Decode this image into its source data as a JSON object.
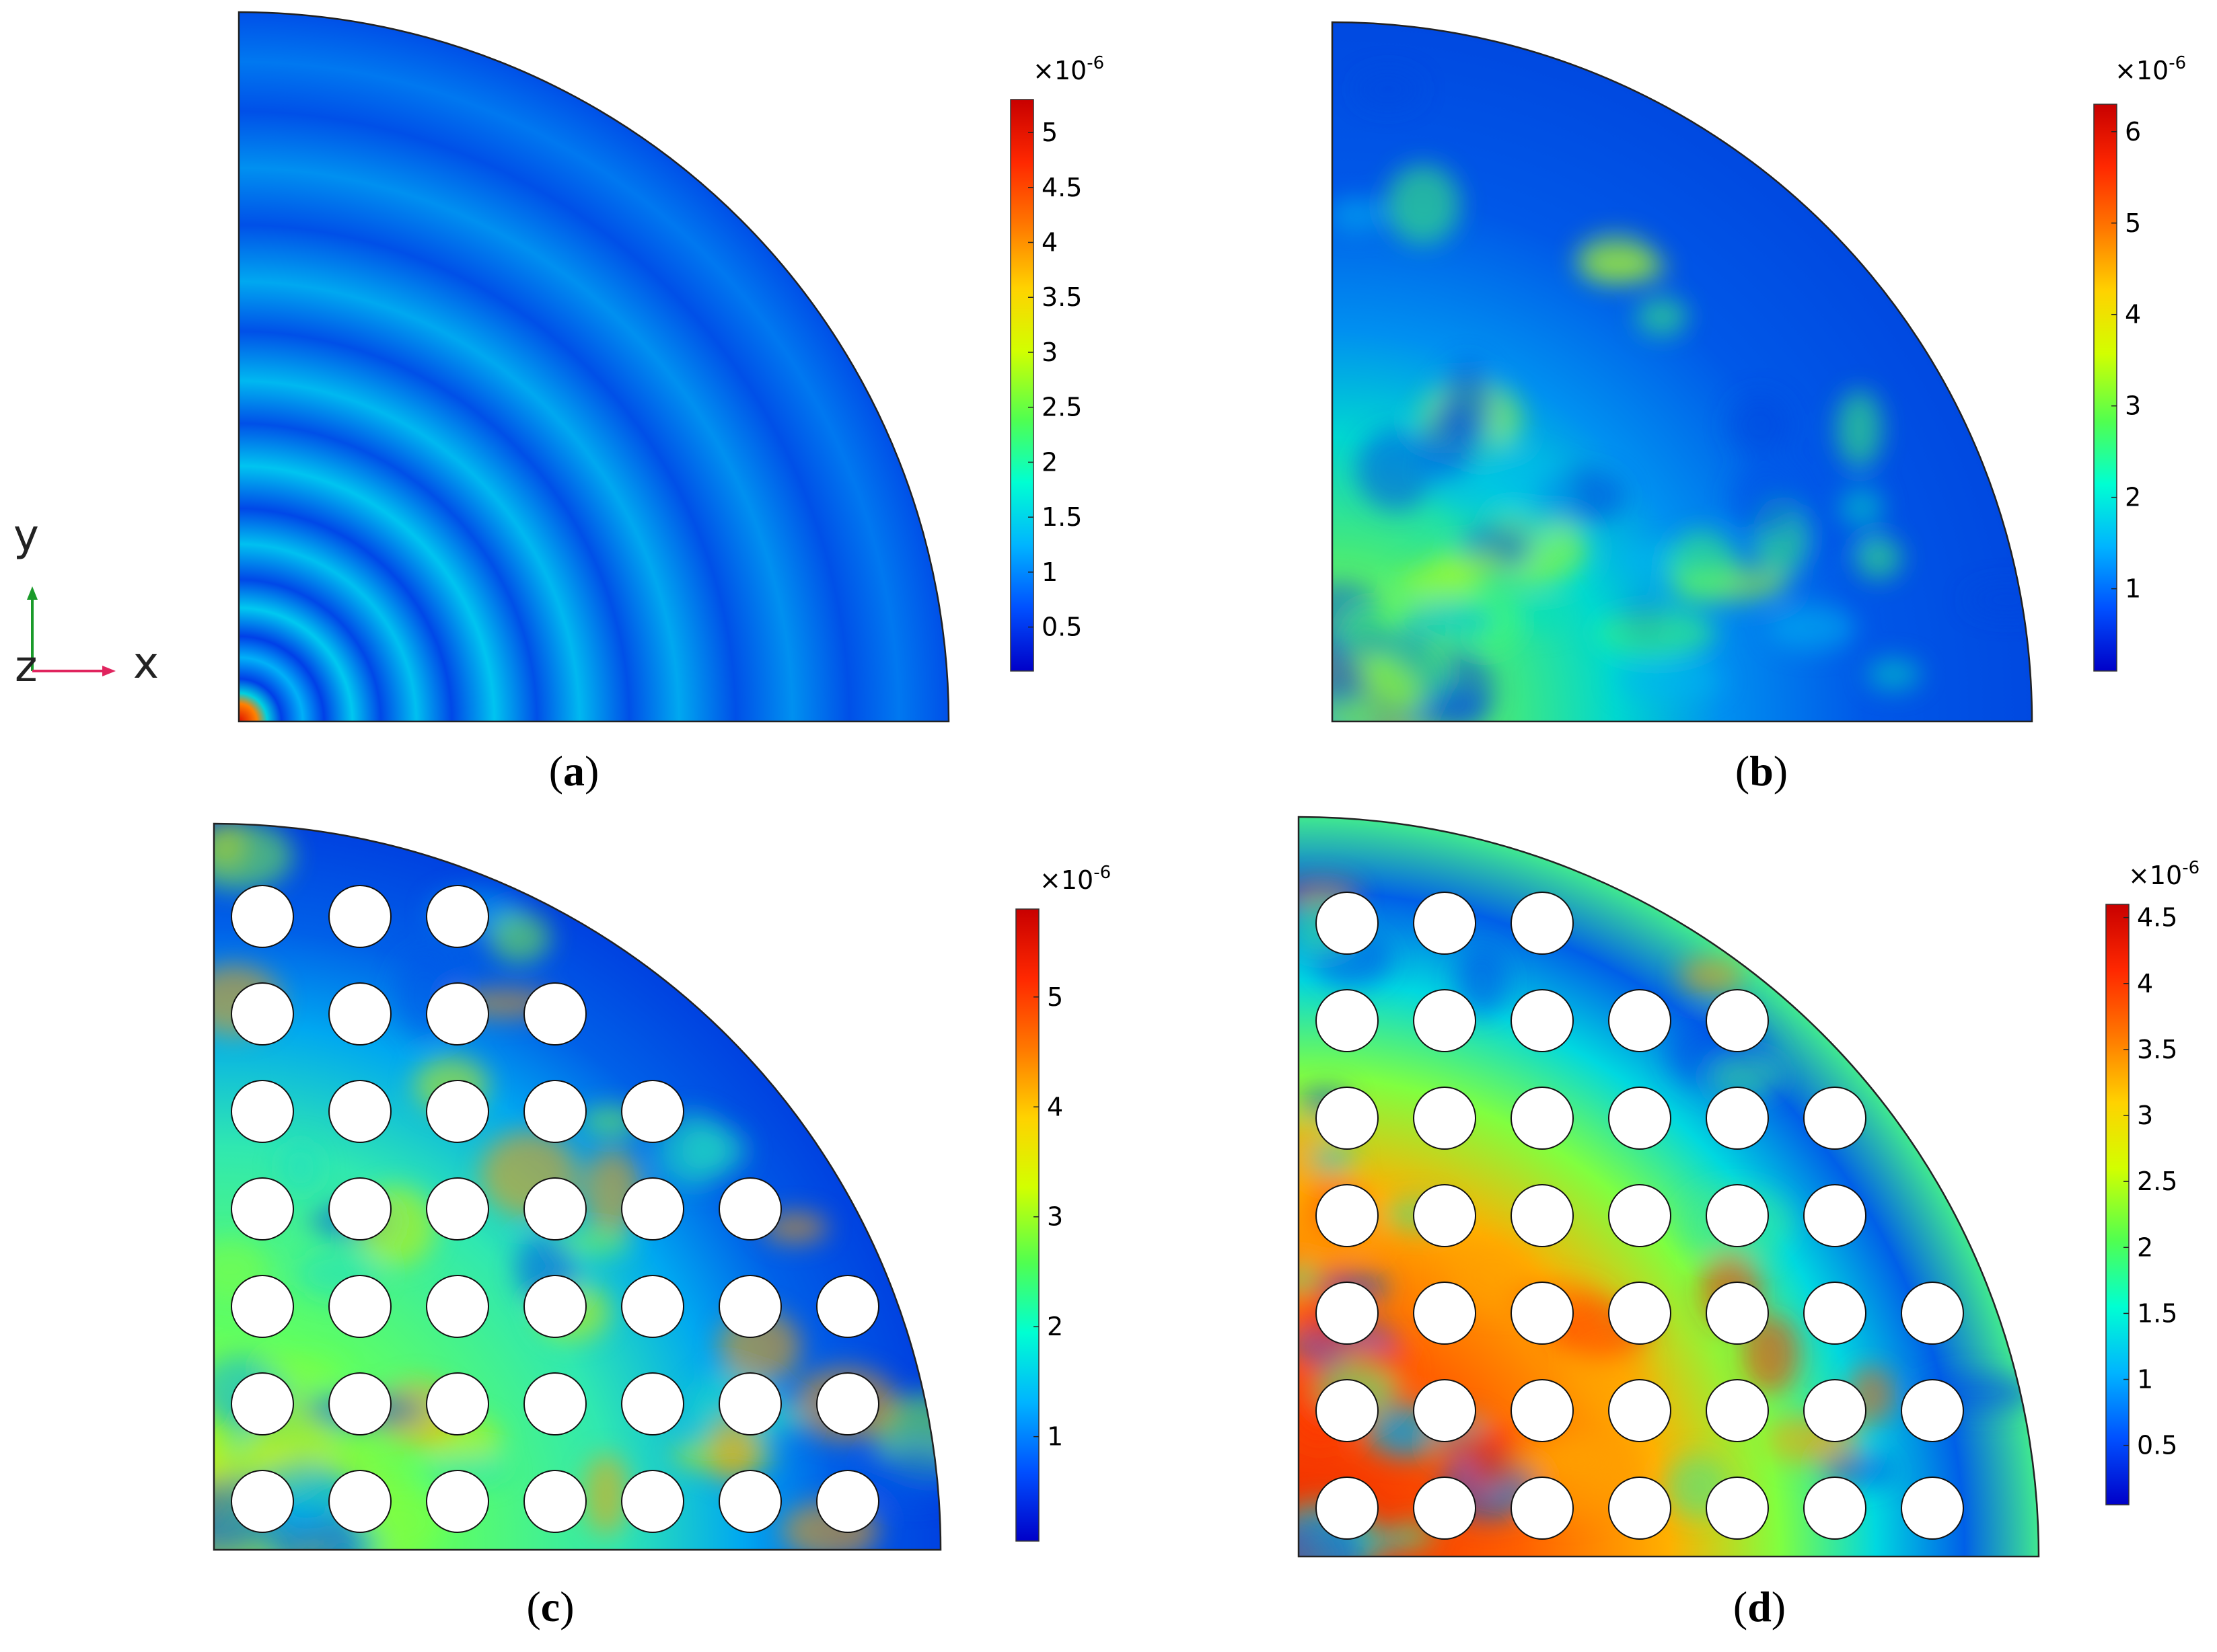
{
  "panels": [
    {
      "id": "a",
      "caption": "a",
      "multiplier_base": "×10",
      "multiplier_exp": "-6",
      "ticks": [
        "0.5",
        "1",
        "1.5",
        "2",
        "2.5",
        "3",
        "3.5",
        "4",
        "4.5",
        "5"
      ],
      "tick_values": [
        0.5,
        1,
        1.5,
        2,
        2.5,
        3,
        3.5,
        4,
        4.5,
        5
      ],
      "range": [
        0.1,
        5.3
      ],
      "holes": false
    },
    {
      "id": "b",
      "caption": "b",
      "multiplier_base": "×10",
      "multiplier_exp": "-6",
      "ticks": [
        "1",
        "2",
        "3",
        "4",
        "5",
        "6"
      ],
      "tick_values": [
        1,
        2,
        3,
        4,
        5,
        6
      ],
      "range": [
        0.1,
        6.3
      ],
      "holes": false
    },
    {
      "id": "c",
      "caption": "c",
      "multiplier_base": "×10",
      "multiplier_exp": "-6",
      "ticks": [
        "1",
        "2",
        "3",
        "4",
        "5"
      ],
      "tick_values": [
        1,
        2,
        3,
        4,
        5
      ],
      "range": [
        0.05,
        5.8
      ],
      "holes": true
    },
    {
      "id": "d",
      "caption": "d",
      "multiplier_base": "×10",
      "multiplier_exp": "-6",
      "ticks": [
        "0.5",
        "1",
        "1.5",
        "2",
        "2.5",
        "3",
        "3.5",
        "4",
        "4.5"
      ],
      "tick_values": [
        0.5,
        1,
        1.5,
        2,
        2.5,
        3,
        3.5,
        4,
        4.5
      ],
      "range": [
        0.05,
        4.6
      ],
      "holes": true
    }
  ],
  "axes_triad": {
    "x_label": "x",
    "y_label": "y",
    "z_label": "z",
    "x_color": "#e0245e",
    "y_color": "#1a9a2a"
  },
  "colormap": [
    "#0000c8",
    "#0050ff",
    "#00b4ff",
    "#00ffd2",
    "#50ff50",
    "#d2ff00",
    "#ffd200",
    "#ff7800",
    "#ff2800",
    "#c80000"
  ]
}
